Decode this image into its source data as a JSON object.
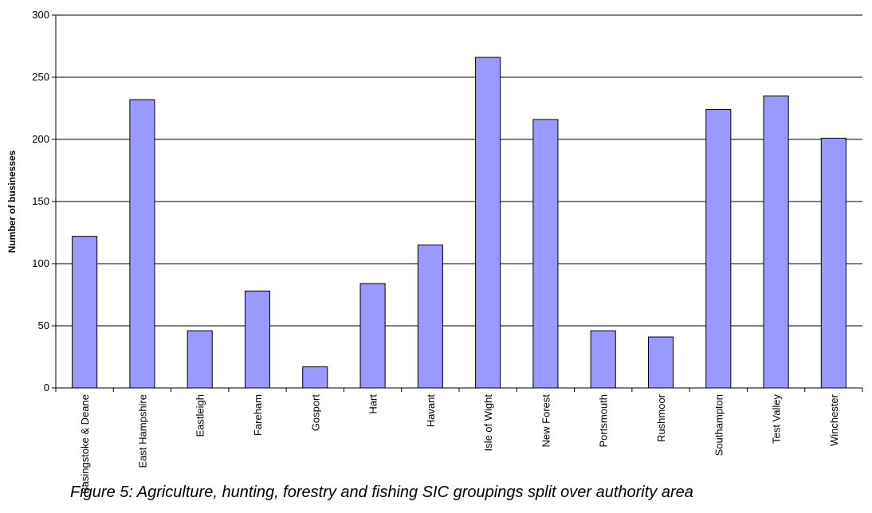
{
  "caption": "Figure 5: Agriculture, hunting, forestry and fishing SIC groupings split over authority area",
  "chart_data": {
    "type": "bar",
    "title": "",
    "xlabel": "",
    "ylabel": "Number of businesses",
    "ylim": [
      0,
      300
    ],
    "yticks": [
      0,
      50,
      100,
      150,
      200,
      250,
      300
    ],
    "grid": true,
    "legend": "none",
    "bar_color": "#9999ff",
    "bar_border_color": "#000000",
    "categories": [
      "Basingstoke & Deane",
      "East Hampshire",
      "Eastleigh",
      "Fareham",
      "Gosport",
      "Hart",
      "Havant",
      "Isle of Wight",
      "New Forest",
      "Portsmouth",
      "Rushmoor",
      "Southampton",
      "Test Valley",
      "Winchester"
    ],
    "values": [
      122,
      232,
      46,
      78,
      17,
      84,
      115,
      266,
      216,
      46,
      41,
      224,
      235,
      201
    ]
  }
}
